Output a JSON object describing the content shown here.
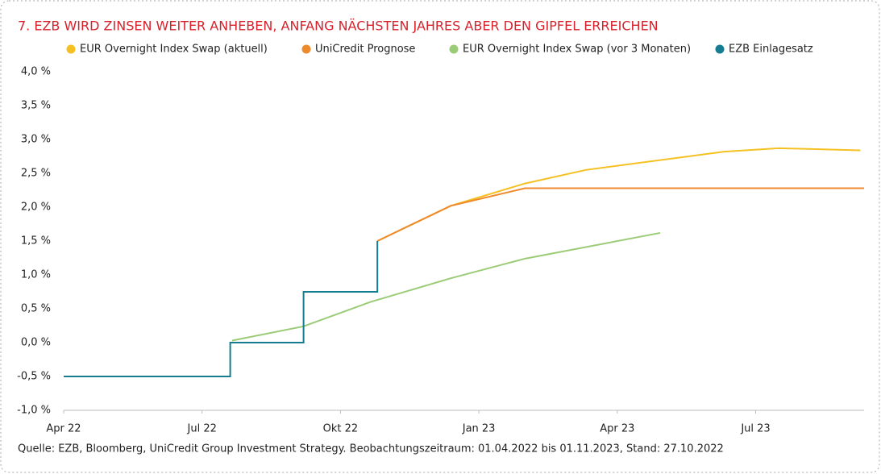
{
  "chart_data": {
    "type": "line",
    "title": "7.   EZB WIRD ZINSEN WEITER ANHEBEN, ANFANG NÄCHSTEN JAHRES ABER DEN GIPFEL ERREICHEN",
    "source": "Quelle: EZB, Bloomberg, UniCredit Group Investment Strategy. Beobachtungszeitraum: 01.04.2022 bis 01.11.2023, Stand: 27.10.2022",
    "xlim": [
      0,
      17.35
    ],
    "xticks": [
      {
        "value": 0,
        "label": "Apr 22"
      },
      {
        "value": 3,
        "label": "Jul 22"
      },
      {
        "value": 6,
        "label": "Okt 22"
      },
      {
        "value": 9,
        "label": "Jan 23"
      },
      {
        "value": 12,
        "label": "Apr 23"
      },
      {
        "value": 15,
        "label": "Jul 23"
      }
    ],
    "ylim": [
      -1.0,
      4.0
    ],
    "yticks": [
      {
        "value": -1.0,
        "label": "-1,0 %"
      },
      {
        "value": -0.5,
        "label": "-0,5 %"
      },
      {
        "value": 0,
        "label": "0,0 %"
      },
      {
        "value": 0.5,
        "label": "0,5 %"
      },
      {
        "value": 1.0,
        "label": "1,0 %"
      },
      {
        "value": 1.5,
        "label": "1,5 %"
      },
      {
        "value": 2.0,
        "label": "2,0 %"
      },
      {
        "value": 2.5,
        "label": "2,5 %"
      },
      {
        "value": 3.0,
        "label": "3,0 %"
      },
      {
        "value": 3.5,
        "label": "3,5 %"
      },
      {
        "value": 4.0,
        "label": "4,0 %"
      }
    ],
    "series": [
      {
        "name": "EUR Overnight Index Swap (aktuell)",
        "color": "#f5c021",
        "x": [
          6.8,
          8.39,
          10.0,
          11.32,
          14.32,
          15.5,
          17.27
        ],
        "values": [
          1.5,
          2.02,
          2.35,
          2.55,
          2.82,
          2.87,
          2.84
        ]
      },
      {
        "name": "UniCredit Prognose",
        "color": "#ee8a2c",
        "x": [
          6.8,
          8.39,
          10.0,
          17.35
        ],
        "values": [
          1.5,
          2.02,
          2.28,
          2.28
        ]
      },
      {
        "name": "EUR Overnight Index Swap (vor 3 Monaten)",
        "color": "#9ccb78",
        "x": [
          3.65,
          5.2,
          6.65,
          8.39,
          10.0,
          12.93
        ],
        "values": [
          0.03,
          0.24,
          0.6,
          0.95,
          1.24,
          1.62
        ]
      },
      {
        "name": "EZB Einlagesatz",
        "color": "#157d8f",
        "x": [
          0,
          3.61,
          3.61,
          5.2,
          5.2,
          6.8,
          6.8
        ],
        "values": [
          -0.5,
          -0.5,
          0,
          0,
          0.75,
          0.75,
          1.5
        ]
      }
    ]
  }
}
